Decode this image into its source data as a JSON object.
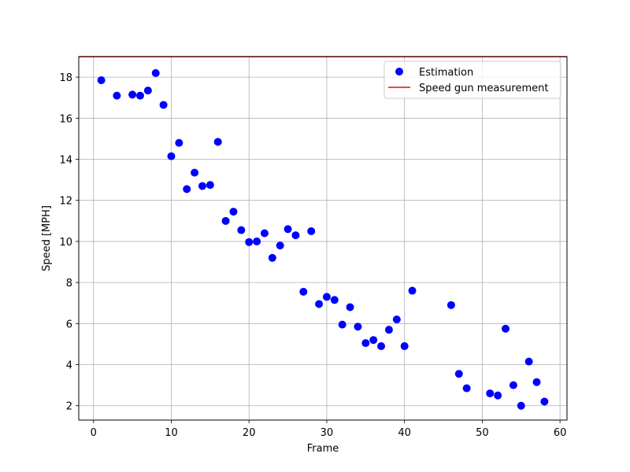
{
  "chart_data": {
    "type": "scatter",
    "title": "",
    "xlabel": "Frame",
    "ylabel": "Speed [MPH]",
    "xlim": [
      -1.9,
      60.9
    ],
    "ylim": [
      1.3,
      19.0
    ],
    "xticks": [
      0,
      10,
      20,
      30,
      40,
      50,
      60
    ],
    "yticks": [
      2,
      4,
      6,
      8,
      10,
      12,
      14,
      16,
      18
    ],
    "grid": true,
    "legend_position": "top-right",
    "series": [
      {
        "name": "Estimation",
        "kind": "scatter",
        "color": "#0000ff",
        "points": [
          [
            1,
            17.85
          ],
          [
            3,
            17.1
          ],
          [
            5,
            17.15
          ],
          [
            6,
            17.1
          ],
          [
            7,
            17.35
          ],
          [
            8,
            18.2
          ],
          [
            9,
            16.65
          ],
          [
            10,
            14.15
          ],
          [
            11,
            14.8
          ],
          [
            12,
            12.55
          ],
          [
            13,
            13.35
          ],
          [
            14,
            12.7
          ],
          [
            15,
            12.75
          ],
          [
            16,
            14.85
          ],
          [
            17,
            11.0
          ],
          [
            18,
            11.45
          ],
          [
            19,
            10.55
          ],
          [
            20,
            9.97
          ],
          [
            21,
            10.0
          ],
          [
            22,
            10.4
          ],
          [
            23,
            9.2
          ],
          [
            24,
            9.8
          ],
          [
            25,
            10.6
          ],
          [
            26,
            10.3
          ],
          [
            27,
            7.55
          ],
          [
            28,
            10.5
          ],
          [
            29,
            6.95
          ],
          [
            30,
            7.3
          ],
          [
            31,
            7.15
          ],
          [
            32,
            5.95
          ],
          [
            33,
            6.8
          ],
          [
            34,
            5.85
          ],
          [
            35,
            5.05
          ],
          [
            36,
            5.2
          ],
          [
            37,
            4.9
          ],
          [
            38,
            5.7
          ],
          [
            39,
            6.2
          ],
          [
            40,
            4.9
          ],
          [
            41,
            7.6
          ],
          [
            46,
            6.9
          ],
          [
            47,
            3.55
          ],
          [
            48,
            2.85
          ],
          [
            51,
            2.6
          ],
          [
            52,
            2.5
          ],
          [
            53,
            5.75
          ],
          [
            54,
            3.0
          ],
          [
            55,
            2.0
          ],
          [
            56,
            4.15
          ],
          [
            57,
            3.15
          ],
          [
            58,
            2.2
          ]
        ]
      },
      {
        "name": "Speed gun measurement",
        "kind": "hline",
        "color": "#ff0000",
        "y": 19.0
      }
    ]
  }
}
